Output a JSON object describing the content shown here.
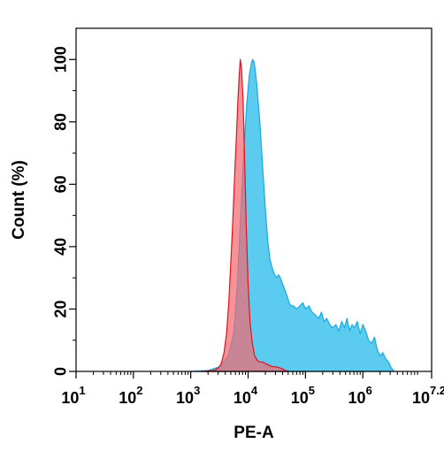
{
  "chart_data": {
    "type": "area",
    "title": "",
    "xlabel": "PE-A",
    "ylabel": "Count (%)",
    "x_scale": "log10",
    "xlim": [
      10,
      15848932
    ],
    "ylim": [
      0,
      110
    ],
    "grid": false,
    "legend": "none",
    "x_ticks": [
      {
        "value": 10,
        "base": "10",
        "exp": "1"
      },
      {
        "value": 100,
        "base": "10",
        "exp": "2"
      },
      {
        "value": 1000,
        "base": "10",
        "exp": "3"
      },
      {
        "value": 10000,
        "base": "10",
        "exp": "4"
      },
      {
        "value": 100000,
        "base": "10",
        "exp": "5"
      },
      {
        "value": 1000000,
        "base": "10",
        "exp": "6"
      },
      {
        "value": 15848932,
        "base": "10",
        "exp": "7.2"
      }
    ],
    "y_ticks": [
      0,
      20,
      40,
      60,
      80,
      100
    ],
    "series": [
      {
        "color_fill": "#5ccbf0",
        "color_line": "#1aa7e0",
        "x": [
          1000,
          2000,
          3200,
          4500,
          5600,
          6500,
          7500,
          8500,
          9500,
          10500,
          11500,
          12000,
          12800,
          14000,
          16000,
          18000,
          20000,
          22000,
          24000,
          26500,
          29000,
          31500,
          34000,
          36500,
          40000,
          44000,
          48000,
          52000,
          56000,
          62000,
          70000,
          80000,
          90000,
          100000,
          115000,
          130000,
          150000,
          170000,
          190000,
          210000,
          235000,
          265000,
          300000,
          340000,
          380000,
          430000,
          480000,
          530000,
          590000,
          650000,
          720000,
          800000,
          900000,
          1000000,
          1120000,
          1260000,
          1420000,
          1600000,
          1780000,
          2000000,
          2240000,
          2510000,
          2820000,
          3160000,
          3550000
        ],
        "y": [
          0,
          0.3,
          1.5,
          5,
          12,
          28,
          52,
          72,
          86,
          95,
          99,
          100,
          99,
          93,
          80,
          65,
          52,
          42,
          36,
          33,
          31,
          30,
          31,
          30,
          28,
          26,
          24,
          22,
          21,
          21,
          20,
          21,
          22,
          20,
          21,
          19,
          18,
          17,
          19,
          16,
          17,
          15,
          14,
          15,
          13,
          16,
          14,
          17,
          13,
          15,
          14,
          16,
          12,
          15,
          13,
          10,
          9,
          11,
          7,
          5,
          6,
          4,
          3,
          1,
          0
        ]
      },
      {
        "color_fill": "#f26a72",
        "color_line": "#e2121f",
        "x": [
          1500,
          2500,
          3000,
          3400,
          3800,
          4200,
          4600,
          5000,
          5400,
          5800,
          6200,
          6600,
          7000,
          7300,
          7700,
          8200,
          8700,
          9300,
          10000,
          10800,
          11800,
          13000,
          14500,
          16000,
          18000,
          20000,
          23000,
          26500,
          30000,
          35000,
          40000,
          45000,
          50000
        ],
        "y": [
          0,
          0.3,
          1,
          2.5,
          6,
          12,
          22,
          35,
          48,
          62,
          74,
          86,
          95,
          100,
          97,
          86,
          68,
          46,
          28,
          16,
          9,
          5,
          3.5,
          3,
          3,
          2.5,
          2,
          1.5,
          1.5,
          1.2,
          0.8,
          0.3,
          0
        ]
      }
    ]
  }
}
